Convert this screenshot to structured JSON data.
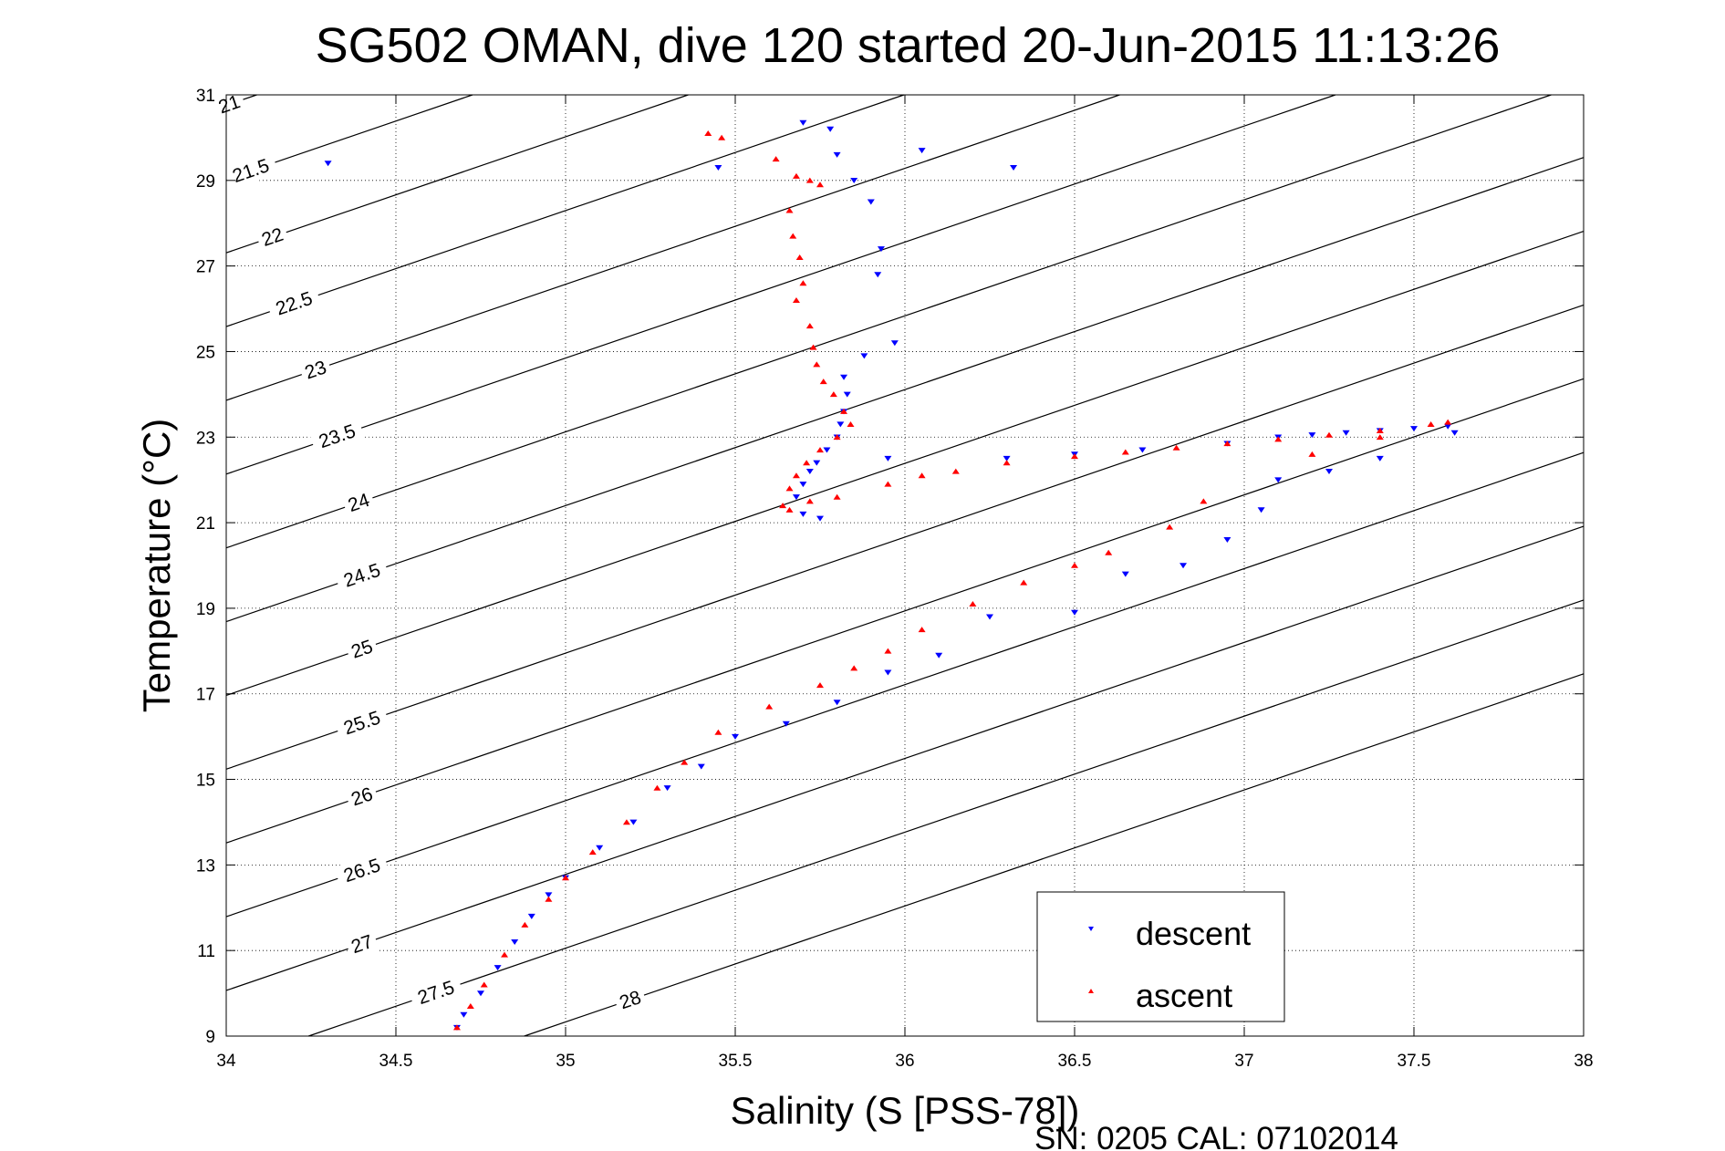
{
  "chart_data": {
    "type": "scatter",
    "title": "SG502 OMAN, dive 120 started 20-Jun-2015 11:13:26",
    "xlabel": "Salinity (S [PSS-78])",
    "ylabel": "Temperature (°C)",
    "footer": "SN: 0205  CAL: 07102014",
    "xlim": [
      34,
      38
    ],
    "ylim": [
      9,
      31
    ],
    "xticks": [
      "34",
      "34.5",
      "35",
      "35.5",
      "36",
      "36.5",
      "37",
      "37.5",
      "38"
    ],
    "yticks": [
      "9",
      "11",
      "13",
      "15",
      "17",
      "19",
      "21",
      "23",
      "25",
      "27",
      "29",
      "31"
    ],
    "grid": true,
    "legend_position": "bottom-right",
    "colors": {
      "descent": "#0000ff",
      "ascent": "#ff0000"
    },
    "density_contours": {
      "levels": [
        "21",
        "21.5",
        "22",
        "22.5",
        "23",
        "23.5",
        "24",
        "24.5",
        "25",
        "25.5",
        "26",
        "26.5",
        "27",
        "27.5",
        "28"
      ]
    },
    "series": [
      {
        "name": "descent",
        "marker": "triangle-down",
        "points": [
          [
            34.3,
            29.4
          ],
          [
            35.45,
            29.3
          ],
          [
            35.7,
            30.35
          ],
          [
            35.78,
            30.2
          ],
          [
            35.8,
            29.6
          ],
          [
            35.85,
            29.0
          ],
          [
            35.9,
            28.5
          ],
          [
            35.93,
            27.4
          ],
          [
            35.92,
            26.8
          ],
          [
            36.05,
            29.7
          ],
          [
            36.32,
            29.3
          ],
          [
            35.97,
            25.2
          ],
          [
            35.88,
            24.9
          ],
          [
            35.82,
            24.4
          ],
          [
            35.83,
            24.0
          ],
          [
            35.82,
            23.6
          ],
          [
            35.81,
            23.3
          ],
          [
            35.8,
            23.0
          ],
          [
            35.77,
            22.7
          ],
          [
            35.74,
            22.4
          ],
          [
            35.72,
            22.2
          ],
          [
            35.7,
            21.9
          ],
          [
            35.68,
            21.6
          ],
          [
            35.7,
            21.2
          ],
          [
            35.75,
            21.1
          ],
          [
            35.95,
            22.5
          ],
          [
            36.3,
            22.5
          ],
          [
            36.5,
            22.6
          ],
          [
            36.7,
            22.7
          ],
          [
            36.95,
            22.85
          ],
          [
            37.1,
            23.0
          ],
          [
            37.2,
            23.05
          ],
          [
            37.3,
            23.1
          ],
          [
            37.4,
            23.15
          ],
          [
            37.5,
            23.2
          ],
          [
            37.6,
            23.25
          ],
          [
            37.62,
            23.1
          ],
          [
            37.4,
            22.5
          ],
          [
            37.25,
            22.2
          ],
          [
            37.1,
            22.0
          ],
          [
            37.05,
            21.3
          ],
          [
            36.95,
            20.6
          ],
          [
            36.82,
            20.0
          ],
          [
            36.65,
            19.8
          ],
          [
            36.5,
            18.9
          ],
          [
            36.25,
            18.8
          ],
          [
            36.1,
            17.9
          ],
          [
            35.95,
            17.5
          ],
          [
            35.8,
            16.8
          ],
          [
            35.65,
            16.3
          ],
          [
            35.5,
            16.0
          ],
          [
            35.4,
            15.3
          ],
          [
            35.3,
            14.8
          ],
          [
            35.2,
            14.0
          ],
          [
            35.1,
            13.4
          ],
          [
            35.0,
            12.7
          ],
          [
            34.95,
            12.3
          ],
          [
            34.9,
            11.8
          ],
          [
            34.85,
            11.2
          ],
          [
            34.8,
            10.6
          ],
          [
            34.75,
            10.0
          ],
          [
            34.7,
            9.5
          ],
          [
            34.68,
            9.2
          ]
        ]
      },
      {
        "name": "ascent",
        "marker": "triangle-up",
        "points": [
          [
            35.42,
            30.1
          ],
          [
            35.46,
            30.0
          ],
          [
            35.62,
            29.5
          ],
          [
            35.68,
            29.1
          ],
          [
            35.72,
            29.0
          ],
          [
            35.75,
            28.9
          ],
          [
            35.66,
            28.3
          ],
          [
            35.67,
            27.7
          ],
          [
            35.69,
            27.2
          ],
          [
            35.7,
            26.6
          ],
          [
            35.68,
            26.2
          ],
          [
            35.72,
            25.6
          ],
          [
            35.73,
            25.1
          ],
          [
            35.74,
            24.7
          ],
          [
            35.76,
            24.3
          ],
          [
            35.79,
            24.0
          ],
          [
            35.82,
            23.6
          ],
          [
            35.84,
            23.3
          ],
          [
            35.8,
            23.0
          ],
          [
            35.75,
            22.7
          ],
          [
            35.71,
            22.4
          ],
          [
            35.68,
            22.1
          ],
          [
            35.66,
            21.8
          ],
          [
            35.64,
            21.4
          ],
          [
            35.66,
            21.3
          ],
          [
            35.72,
            21.5
          ],
          [
            35.8,
            21.6
          ],
          [
            35.95,
            21.9
          ],
          [
            36.05,
            22.1
          ],
          [
            36.15,
            22.2
          ],
          [
            36.3,
            22.4
          ],
          [
            36.5,
            22.55
          ],
          [
            36.65,
            22.65
          ],
          [
            36.8,
            22.75
          ],
          [
            36.95,
            22.85
          ],
          [
            37.1,
            22.95
          ],
          [
            37.25,
            23.05
          ],
          [
            37.4,
            23.15
          ],
          [
            37.55,
            23.3
          ],
          [
            37.6,
            23.35
          ],
          [
            37.4,
            23.0
          ],
          [
            37.2,
            22.6
          ],
          [
            36.88,
            21.5
          ],
          [
            36.78,
            20.9
          ],
          [
            36.6,
            20.3
          ],
          [
            36.5,
            20.0
          ],
          [
            36.35,
            19.6
          ],
          [
            36.2,
            19.1
          ],
          [
            36.05,
            18.5
          ],
          [
            35.95,
            18.0
          ],
          [
            35.85,
            17.6
          ],
          [
            35.75,
            17.2
          ],
          [
            35.6,
            16.7
          ],
          [
            35.45,
            16.1
          ],
          [
            35.35,
            15.4
          ],
          [
            35.27,
            14.8
          ],
          [
            35.18,
            14.0
          ],
          [
            35.08,
            13.3
          ],
          [
            35.0,
            12.7
          ],
          [
            34.95,
            12.2
          ],
          [
            34.88,
            11.6
          ],
          [
            34.82,
            10.9
          ],
          [
            34.76,
            10.2
          ],
          [
            34.72,
            9.7
          ],
          [
            34.68,
            9.2
          ]
        ]
      }
    ]
  }
}
